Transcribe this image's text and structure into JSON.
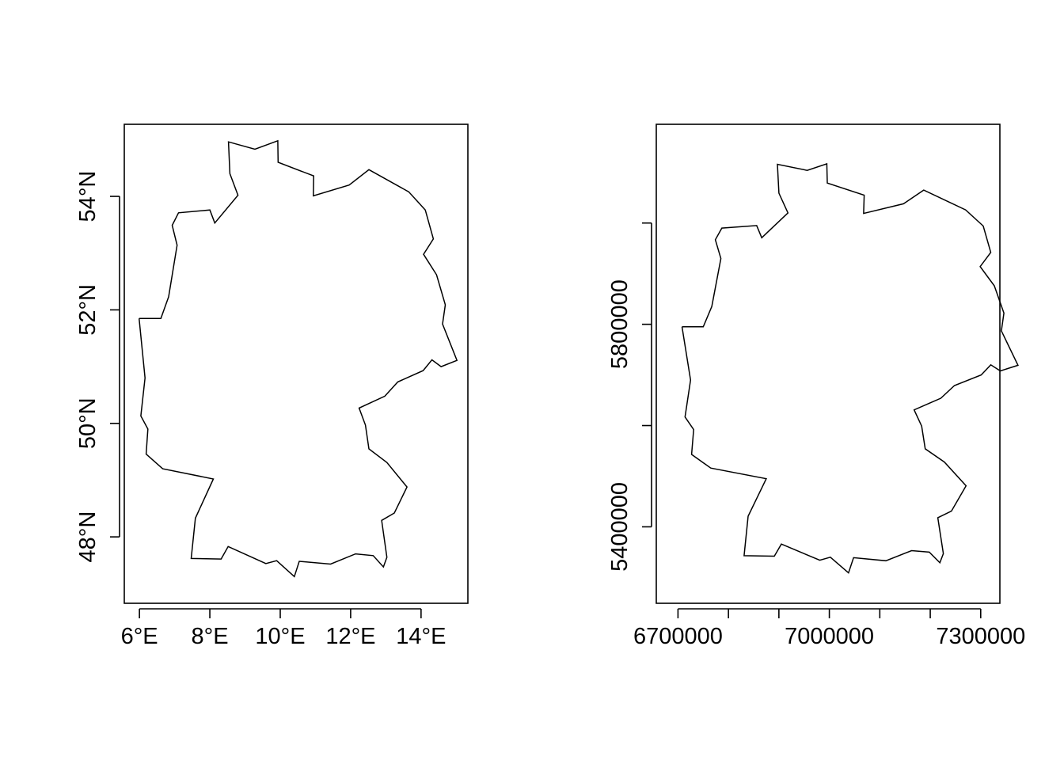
{
  "figure": {
    "panels": [
      {
        "id": "geographic",
        "x_ticks": [
          {
            "value": 6,
            "label": "6°E"
          },
          {
            "value": 8,
            "label": "8°E"
          },
          {
            "value": 10,
            "label": "10°E"
          },
          {
            "value": 12,
            "label": "12°E"
          },
          {
            "value": 14,
            "label": "14°E"
          }
        ],
        "y_ticks": [
          {
            "value": 48,
            "label": "48°N"
          },
          {
            "value": 50,
            "label": "50°N"
          },
          {
            "value": 52,
            "label": "52°N"
          },
          {
            "value": 54,
            "label": "54°N"
          }
        ]
      },
      {
        "id": "projected",
        "x_ticks": [
          {
            "value": 6700000,
            "label": "6700000"
          },
          {
            "value": 6800000,
            "label": ""
          },
          {
            "value": 6900000,
            "label": ""
          },
          {
            "value": 7000000,
            "label": "7000000"
          },
          {
            "value": 7100000,
            "label": ""
          },
          {
            "value": 7200000,
            "label": ""
          },
          {
            "value": 7300000,
            "label": "7300000"
          }
        ],
        "y_ticks": [
          {
            "value": 5400000,
            "label": "5400000"
          },
          {
            "value": 5600000,
            "label": ""
          },
          {
            "value": 5800000,
            "label": "5800000"
          },
          {
            "value": 6000000,
            "label": ""
          }
        ]
      }
    ]
  },
  "chart_data": [
    {
      "type": "map",
      "title": "",
      "xlabel": "",
      "ylabel": "",
      "xlim": [
        5.57,
        15.33
      ],
      "ylim": [
        46.83,
        55.27
      ],
      "grid": false,
      "outline": [
        [
          5.99,
          51.85
        ],
        [
          6.61,
          51.85
        ],
        [
          6.83,
          52.23
        ],
        [
          7.07,
          53.14
        ],
        [
          6.93,
          53.49
        ],
        [
          7.11,
          53.71
        ],
        [
          8.0,
          53.76
        ],
        [
          8.14,
          53.53
        ],
        [
          8.8,
          54.02
        ],
        [
          8.57,
          54.4
        ],
        [
          8.53,
          54.96
        ],
        [
          9.28,
          54.83
        ],
        [
          9.93,
          54.98
        ],
        [
          9.94,
          54.6
        ],
        [
          10.95,
          54.36
        ],
        [
          10.94,
          54.01
        ],
        [
          11.96,
          54.2
        ],
        [
          12.52,
          54.47
        ],
        [
          13.65,
          54.08
        ],
        [
          14.12,
          53.76
        ],
        [
          14.35,
          53.25
        ],
        [
          14.07,
          52.98
        ],
        [
          14.44,
          52.62
        ],
        [
          14.69,
          52.09
        ],
        [
          14.61,
          51.75
        ],
        [
          15.02,
          51.11
        ],
        [
          14.57,
          51.0
        ],
        [
          14.31,
          51.12
        ],
        [
          14.06,
          50.93
        ],
        [
          13.34,
          50.73
        ],
        [
          12.97,
          50.48
        ],
        [
          12.24,
          50.27
        ],
        [
          12.42,
          49.97
        ],
        [
          12.52,
          49.55
        ],
        [
          13.03,
          49.31
        ],
        [
          13.6,
          48.88
        ],
        [
          13.24,
          48.42
        ],
        [
          12.88,
          48.29
        ],
        [
          13.03,
          47.64
        ],
        [
          12.93,
          47.47
        ],
        [
          12.64,
          47.67
        ],
        [
          12.14,
          47.7
        ],
        [
          11.43,
          47.52
        ],
        [
          10.54,
          47.57
        ],
        [
          10.4,
          47.3
        ],
        [
          9.9,
          47.58
        ],
        [
          9.59,
          47.53
        ],
        [
          8.52,
          47.83
        ],
        [
          8.32,
          47.61
        ],
        [
          7.47,
          47.62
        ],
        [
          7.59,
          48.33
        ],
        [
          8.1,
          49.02
        ],
        [
          6.66,
          49.2
        ],
        [
          6.19,
          49.46
        ],
        [
          6.24,
          49.9
        ],
        [
          6.04,
          50.13
        ],
        [
          6.16,
          50.8
        ],
        [
          5.99,
          51.85
        ]
      ]
    },
    {
      "type": "map",
      "title": "",
      "xlabel": "",
      "ylabel": "",
      "xlim": [
        6657000,
        7338000
      ],
      "ylim": [
        5249000,
        6195000
      ],
      "grid": false,
      "outline": [
        [
          6708000,
          5795000
        ],
        [
          6750000,
          5795000
        ],
        [
          6767000,
          5835000
        ],
        [
          6785000,
          5930000
        ],
        [
          6774000,
          5967000
        ],
        [
          6787000,
          5990000
        ],
        [
          6856000,
          5995000
        ],
        [
          6866000,
          5971000
        ],
        [
          6918000,
          6020000
        ],
        [
          6900000,
          6059000
        ],
        [
          6897000,
          6116000
        ],
        [
          6956000,
          6104000
        ],
        [
          6995000,
          6117000
        ],
        [
          6996000,
          6079000
        ],
        [
          7069000,
          6055000
        ],
        [
          7068000,
          6019000
        ],
        [
          7147000,
          6038000
        ],
        [
          7187000,
          6065000
        ],
        [
          7270000,
          6026000
        ],
        [
          7305000,
          5994000
        ],
        [
          7320000,
          5942000
        ],
        [
          7299000,
          5914000
        ],
        [
          7327000,
          5876000
        ],
        [
          7346000,
          5822000
        ],
        [
          7341000,
          5787000
        ],
        [
          7374000,
          5719000
        ],
        [
          7339000,
          5708000
        ],
        [
          7320000,
          5720000
        ],
        [
          7301000,
          5700000
        ],
        [
          7248000,
          5679000
        ],
        [
          7221000,
          5654000
        ],
        [
          7168000,
          5631000
        ],
        [
          7183000,
          5599000
        ],
        [
          7190000,
          5554000
        ],
        [
          7228000,
          5528000
        ],
        [
          7271000,
          5481000
        ],
        [
          7242000,
          5431000
        ],
        [
          7215000,
          5418000
        ],
        [
          7226000,
          5347000
        ],
        [
          7219000,
          5329000
        ],
        [
          7198000,
          5350000
        ],
        [
          7163000,
          5353000
        ],
        [
          7112000,
          5333000
        ],
        [
          7048000,
          5339000
        ],
        [
          7038000,
          5309000
        ],
        [
          7002000,
          5340000
        ],
        [
          6981000,
          5334000
        ],
        [
          6905000,
          5366000
        ],
        [
          6891000,
          5342000
        ],
        [
          6831000,
          5343000
        ],
        [
          6839000,
          5421000
        ],
        [
          6875000,
          5495000
        ],
        [
          6765000,
          5516000
        ],
        [
          6727000,
          5543000
        ],
        [
          6731000,
          5592000
        ],
        [
          6714000,
          5617000
        ],
        [
          6725000,
          5690000
        ],
        [
          6708000,
          5795000
        ]
      ]
    }
  ]
}
